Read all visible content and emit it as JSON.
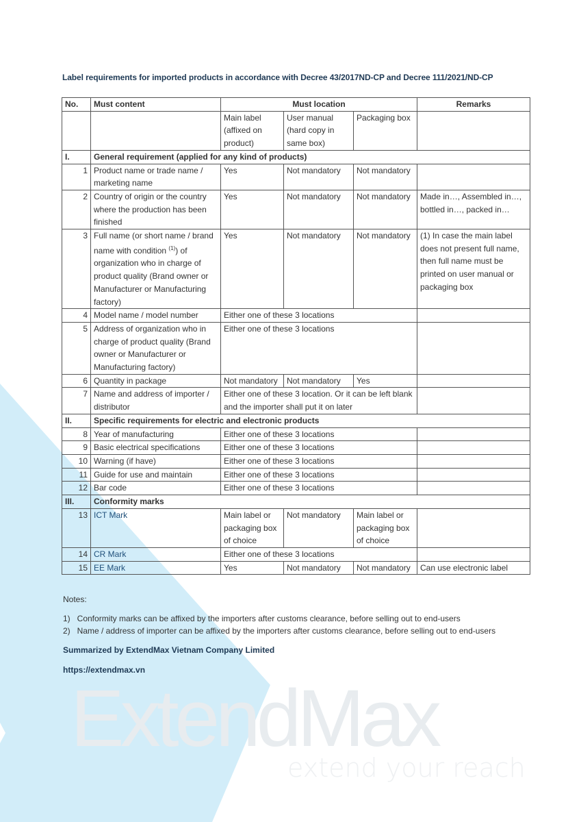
{
  "title": "Label requirements for imported products in accordance with Decree 43/2017ND-CP and Decree 111/2021/ND-CP",
  "headers": {
    "no": "No.",
    "content": "Must content",
    "location": "Must location",
    "remarks": "Remarks",
    "main_label": "Main label (affixed on product)",
    "user_manual": "User manual (hard copy in same box)",
    "packaging_box": "Packaging box"
  },
  "sections": [
    {
      "no": "I.",
      "title": "General requirement (applied for any kind of products)"
    },
    {
      "no": "II.",
      "title": "Specific requirements for electric and electronic products"
    },
    {
      "no": "III.",
      "title": "Conformity marks"
    }
  ],
  "rows": [
    {
      "no": "1",
      "content": "Product name or trade name / marketing name",
      "main": "Yes",
      "manual": "Not mandatory",
      "box": "Not mandatory",
      "remarks": ""
    },
    {
      "no": "2",
      "content": "Country of origin or the country where the production has been finished",
      "main": "Yes",
      "manual": "Not mandatory",
      "box": "Not mandatory",
      "remarks": "Made in…, Assembled in…, bottled in…, packed in…"
    },
    {
      "no": "3",
      "content": "Full name (or short name / brand name with condition",
      "sup": "(1)",
      "content2": ") of organization who in charge of product quality (Brand owner or Manufacturer or Manufacturing factory)",
      "main": "Yes",
      "manual": "Not mandatory",
      "box": "Not mandatory",
      "remarks": "(1) In case the main label does not present full name, then full name must be printed on user manual or packaging box"
    },
    {
      "no": "4",
      "content": "Model name / model number",
      "either": "Either one of these 3 locations",
      "remarks": ""
    },
    {
      "no": "5",
      "content": "Address of organization who in charge of product quality (Brand owner or Manufacturer or Manufacturing factory)",
      "either": "Either one of these 3 locations",
      "remarks": ""
    },
    {
      "no": "6",
      "content": "Quantity in package",
      "main": "Not mandatory",
      "manual": "Not mandatory",
      "box": "Yes",
      "remarks": ""
    },
    {
      "no": "7",
      "content": "Name and address of importer / distributor",
      "either": "Either one of these 3 location. Or it can be left blank and the importer shall put it on later",
      "remarks": ""
    },
    {
      "no": "8",
      "content": "Year of manufacturing",
      "either": "Either one of these 3 locations",
      "remarks": ""
    },
    {
      "no": "9",
      "content": "Basic electrical specifications",
      "either": "Either one of these 3 locations",
      "remarks": ""
    },
    {
      "no": "10",
      "content": "Warning (if have)",
      "either": "Either one of these 3 locations",
      "remarks": ""
    },
    {
      "no": "11",
      "content": "Guide for use and maintain",
      "either": "Either one of these 3 locations",
      "remarks": ""
    },
    {
      "no": "12",
      "content": "Bar code",
      "either": "Either one of these 3 locations",
      "remarks": ""
    },
    {
      "no": "13",
      "content": "ICT Mark",
      "main": "Main label or packaging box of choice",
      "manual": "Not mandatory",
      "box": "Main label or packaging box of choice",
      "remarks": ""
    },
    {
      "no": "14",
      "content": "CR Mark",
      "either": "Either one of these 3 locations",
      "remarks": ""
    },
    {
      "no": "15",
      "content": "EE Mark",
      "main": "Yes",
      "manual": "Not mandatory",
      "box": "Not mandatory",
      "remarks": "Can use electronic label"
    }
  ],
  "notes": {
    "heading": "Notes:",
    "items": [
      "1)   Conformity marks can be affixed by the importers after customs clearance, before selling out to end-users",
      "2)   Name / address of importer can be affixed by the importers after customs clearance, before selling out to end-users"
    ]
  },
  "summary": "Summarized by ExtendMax Vietnam Company Limited",
  "url": "https://extendmax.vn",
  "watermark": {
    "brand": "ExtendMax",
    "tagline": "extend your reach"
  },
  "colors": {
    "background_shape": "#d2edf9",
    "title": "#1f3a55",
    "watermark": "#e8ecef"
  }
}
